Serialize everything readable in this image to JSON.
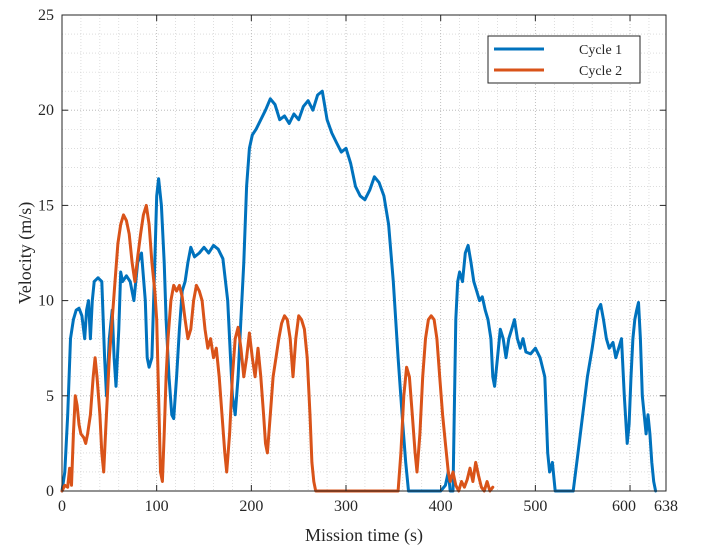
{
  "chart_data": {
    "type": "line",
    "title": "",
    "xlabel": "Mission time (s)",
    "ylabel": "Velocity (m/s)",
    "xlim": [
      0,
      638
    ],
    "ylim": [
      0,
      25
    ],
    "xticks": [
      0,
      100,
      200,
      300,
      400,
      500,
      600,
      638
    ],
    "yticks": [
      0,
      5,
      10,
      15,
      20,
      25
    ],
    "grid": "major and minor, dotted",
    "legend": "top-right",
    "series": [
      {
        "name": "Cycle 1",
        "color": "#0072BD",
        "points": [
          [
            0,
            0
          ],
          [
            3,
            1
          ],
          [
            6,
            4
          ],
          [
            9,
            8
          ],
          [
            12,
            9
          ],
          [
            15,
            9.5
          ],
          [
            18,
            9.6
          ],
          [
            21,
            9.2
          ],
          [
            24,
            8
          ],
          [
            26,
            9.5
          ],
          [
            28,
            10
          ],
          [
            30,
            8
          ],
          [
            32,
            10
          ],
          [
            34,
            11
          ],
          [
            38,
            11.2
          ],
          [
            42,
            11
          ],
          [
            45,
            7
          ],
          [
            47,
            5
          ],
          [
            50,
            8
          ],
          [
            53,
            9.5
          ],
          [
            55,
            7
          ],
          [
            57,
            5.5
          ],
          [
            60,
            8.5
          ],
          [
            62,
            11.5
          ],
          [
            64,
            11
          ],
          [
            68,
            11.3
          ],
          [
            72,
            11
          ],
          [
            76,
            10
          ],
          [
            80,
            12
          ],
          [
            84,
            12.5
          ],
          [
            88,
            10
          ],
          [
            90,
            7
          ],
          [
            92,
            6.5
          ],
          [
            95,
            7
          ],
          [
            98,
            12
          ],
          [
            100,
            15.5
          ],
          [
            102,
            16.4
          ],
          [
            105,
            15
          ],
          [
            108,
            12
          ],
          [
            110,
            9
          ],
          [
            113,
            6
          ],
          [
            116,
            4
          ],
          [
            118,
            3.8
          ],
          [
            121,
            6
          ],
          [
            124,
            8.5
          ],
          [
            127,
            10.5
          ],
          [
            130,
            11
          ],
          [
            133,
            12
          ],
          [
            136,
            12.8
          ],
          [
            140,
            12.3
          ],
          [
            145,
            12.5
          ],
          [
            150,
            12.8
          ],
          [
            155,
            12.5
          ],
          [
            160,
            12.9
          ],
          [
            165,
            12.7
          ],
          [
            170,
            12.2
          ],
          [
            175,
            10
          ],
          [
            178,
            7
          ],
          [
            180,
            5
          ],
          [
            183,
            4
          ],
          [
            186,
            6
          ],
          [
            189,
            9
          ],
          [
            192,
            12
          ],
          [
            195,
            16
          ],
          [
            198,
            18
          ],
          [
            201,
            18.7
          ],
          [
            205,
            19
          ],
          [
            210,
            19.5
          ],
          [
            215,
            20
          ],
          [
            220,
            20.6
          ],
          [
            225,
            20.3
          ],
          [
            230,
            19.5
          ],
          [
            235,
            19.7
          ],
          [
            240,
            19.3
          ],
          [
            245,
            19.8
          ],
          [
            250,
            19.5
          ],
          [
            255,
            20.2
          ],
          [
            260,
            20.5
          ],
          [
            265,
            20
          ],
          [
            270,
            20.8
          ],
          [
            275,
            21
          ],
          [
            280,
            19.5
          ],
          [
            285,
            18.8
          ],
          [
            290,
            18.3
          ],
          [
            295,
            17.8
          ],
          [
            300,
            18
          ],
          [
            305,
            17.2
          ],
          [
            310,
            16
          ],
          [
            315,
            15.5
          ],
          [
            320,
            15.3
          ],
          [
            325,
            15.8
          ],
          [
            330,
            16.5
          ],
          [
            335,
            16.2
          ],
          [
            340,
            15.5
          ],
          [
            345,
            14
          ],
          [
            350,
            11
          ],
          [
            355,
            7
          ],
          [
            360,
            3.5
          ],
          [
            363,
            1.5
          ],
          [
            366,
            0
          ],
          [
            375,
            0
          ],
          [
            385,
            0
          ],
          [
            395,
            0
          ],
          [
            400,
            0
          ],
          [
            405,
            0.3
          ],
          [
            408,
            1
          ],
          [
            410,
            0
          ],
          [
            413,
            0
          ],
          [
            416,
            9
          ],
          [
            418,
            11
          ],
          [
            420,
            11.5
          ],
          [
            423,
            11
          ],
          [
            426,
            12.5
          ],
          [
            429,
            12.9
          ],
          [
            432,
            12
          ],
          [
            435,
            11
          ],
          [
            438,
            10.5
          ],
          [
            441,
            10
          ],
          [
            444,
            10.2
          ],
          [
            447,
            9.5
          ],
          [
            450,
            9
          ],
          [
            453,
            8
          ],
          [
            455,
            6
          ],
          [
            457,
            5.5
          ],
          [
            460,
            7
          ],
          [
            463,
            8.5
          ],
          [
            466,
            8
          ],
          [
            469,
            7
          ],
          [
            472,
            8
          ],
          [
            475,
            8.5
          ],
          [
            478,
            9
          ],
          [
            481,
            8
          ],
          [
            484,
            7.5
          ],
          [
            487,
            8
          ],
          [
            490,
            7.3
          ],
          [
            495,
            7.2
          ],
          [
            500,
            7.5
          ],
          [
            505,
            7
          ],
          [
            510,
            6
          ],
          [
            513,
            2
          ],
          [
            515,
            1
          ],
          [
            518,
            1.5
          ],
          [
            521,
            0
          ],
          [
            530,
            0
          ],
          [
            535,
            0
          ],
          [
            540,
            0
          ],
          [
            545,
            2
          ],
          [
            550,
            4
          ],
          [
            555,
            6
          ],
          [
            560,
            7.5
          ],
          [
            563,
            8.5
          ],
          [
            566,
            9.5
          ],
          [
            569,
            9.8
          ],
          [
            572,
            9
          ],
          [
            575,
            8
          ],
          [
            578,
            7.5
          ],
          [
            582,
            7.8
          ],
          [
            585,
            7
          ],
          [
            588,
            7.5
          ],
          [
            591,
            8
          ],
          [
            594,
            5
          ],
          [
            597,
            2.5
          ],
          [
            599,
            3.5
          ],
          [
            601,
            6
          ],
          [
            603,
            8
          ],
          [
            605,
            9
          ],
          [
            607,
            9.5
          ],
          [
            609,
            9.9
          ],
          [
            611,
            8
          ],
          [
            613,
            5
          ],
          [
            615,
            4
          ],
          [
            617,
            3
          ],
          [
            619,
            4
          ],
          [
            621,
            3
          ],
          [
            623,
            1.5
          ],
          [
            625,
            0.5
          ],
          [
            627,
            0
          ]
        ]
      },
      {
        "name": "Cycle 2",
        "color": "#D95319",
        "points": [
          [
            0,
            0
          ],
          [
            3,
            0.3
          ],
          [
            6,
            0.2
          ],
          [
            8,
            1.2
          ],
          [
            10,
            0.3
          ],
          [
            12,
            3
          ],
          [
            14,
            5
          ],
          [
            16,
            4.5
          ],
          [
            18,
            3.5
          ],
          [
            20,
            3
          ],
          [
            23,
            2.8
          ],
          [
            25,
            2.5
          ],
          [
            27,
            3
          ],
          [
            30,
            4
          ],
          [
            33,
            6
          ],
          [
            35,
            7
          ],
          [
            37,
            6
          ],
          [
            40,
            4
          ],
          [
            42,
            2
          ],
          [
            44,
            1
          ],
          [
            46,
            3
          ],
          [
            48,
            5
          ],
          [
            50,
            7
          ],
          [
            53,
            9
          ],
          [
            56,
            11
          ],
          [
            59,
            13
          ],
          [
            62,
            14
          ],
          [
            65,
            14.5
          ],
          [
            68,
            14.2
          ],
          [
            71,
            13.5
          ],
          [
            74,
            12
          ],
          [
            77,
            11
          ],
          [
            80,
            12.3
          ],
          [
            83,
            13.5
          ],
          [
            86,
            14.5
          ],
          [
            89,
            15
          ],
          [
            92,
            14
          ],
          [
            95,
            12
          ],
          [
            98,
            10.5
          ],
          [
            100,
            9
          ],
          [
            102,
            5
          ],
          [
            104,
            1
          ],
          [
            106,
            0.5
          ],
          [
            108,
            3
          ],
          [
            110,
            6
          ],
          [
            112,
            8
          ],
          [
            115,
            10
          ],
          [
            118,
            10.8
          ],
          [
            121,
            10.5
          ],
          [
            124,
            10.8
          ],
          [
            127,
            10.2
          ],
          [
            130,
            9
          ],
          [
            133,
            8
          ],
          [
            136,
            8.5
          ],
          [
            139,
            10
          ],
          [
            142,
            10.8
          ],
          [
            145,
            10.5
          ],
          [
            148,
            10
          ],
          [
            151,
            8.5
          ],
          [
            154,
            7.5
          ],
          [
            157,
            8
          ],
          [
            160,
            7
          ],
          [
            163,
            7.5
          ],
          [
            166,
            6
          ],
          [
            169,
            4
          ],
          [
            172,
            2
          ],
          [
            174,
            1
          ],
          [
            177,
            3
          ],
          [
            180,
            6
          ],
          [
            183,
            8
          ],
          [
            186,
            8.6
          ],
          [
            189,
            7.5
          ],
          [
            192,
            6
          ],
          [
            195,
            7
          ],
          [
            198,
            8.3
          ],
          [
            201,
            7
          ],
          [
            204,
            6
          ],
          [
            207,
            7.5
          ],
          [
            210,
            6
          ],
          [
            213,
            4
          ],
          [
            215,
            2.5
          ],
          [
            217,
            2
          ],
          [
            220,
            4
          ],
          [
            223,
            6
          ],
          [
            226,
            7
          ],
          [
            229,
            8
          ],
          [
            232,
            8.8
          ],
          [
            235,
            9.2
          ],
          [
            238,
            9
          ],
          [
            241,
            8
          ],
          [
            244,
            6
          ],
          [
            247,
            8
          ],
          [
            250,
            9.2
          ],
          [
            253,
            9
          ],
          [
            256,
            8.5
          ],
          [
            259,
            7
          ],
          [
            262,
            4
          ],
          [
            264,
            1.5
          ],
          [
            266,
            0.5
          ],
          [
            268,
            0
          ],
          [
            280,
            0
          ],
          [
            290,
            0
          ],
          [
            300,
            0
          ],
          [
            310,
            0
          ],
          [
            320,
            0
          ],
          [
            330,
            0
          ],
          [
            340,
            0
          ],
          [
            350,
            0
          ],
          [
            355,
            0
          ],
          [
            358,
            2
          ],
          [
            361,
            5
          ],
          [
            364,
            6.5
          ],
          [
            367,
            6
          ],
          [
            370,
            4
          ],
          [
            373,
            2
          ],
          [
            375,
            1
          ],
          [
            378,
            3
          ],
          [
            381,
            6
          ],
          [
            384,
            8
          ],
          [
            387,
            9
          ],
          [
            390,
            9.2
          ],
          [
            393,
            9
          ],
          [
            396,
            8
          ],
          [
            399,
            6
          ],
          [
            402,
            4
          ],
          [
            405,
            2.5
          ],
          [
            408,
            1
          ],
          [
            410,
            0.5
          ],
          [
            413,
            1
          ],
          [
            416,
            0.3
          ],
          [
            419,
            0
          ],
          [
            422,
            0.5
          ],
          [
            425,
            0.2
          ],
          [
            428,
            0.6
          ],
          [
            431,
            1.2
          ],
          [
            434,
            0.5
          ],
          [
            437,
            1.5
          ],
          [
            440,
            0.8
          ],
          [
            443,
            0.2
          ],
          [
            446,
            0
          ],
          [
            449,
            0.5
          ],
          [
            452,
            0
          ],
          [
            455,
            0.2
          ]
        ]
      }
    ]
  }
}
